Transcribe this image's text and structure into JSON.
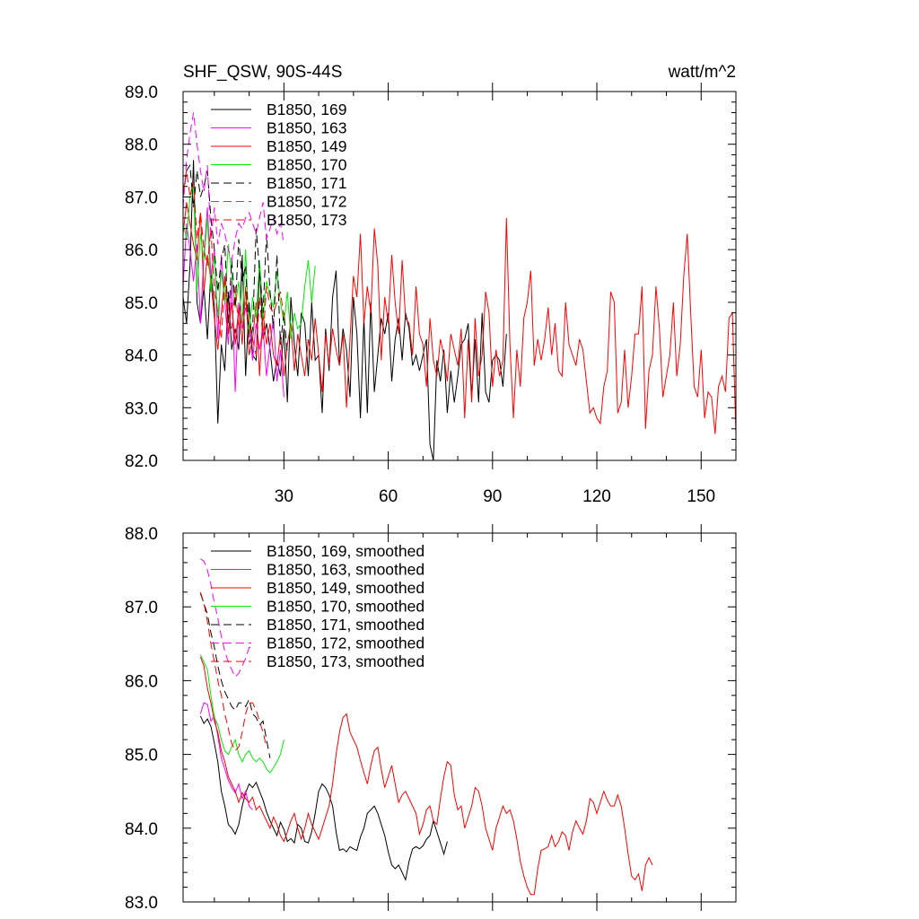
{
  "chart_data": [
    {
      "type": "line",
      "title": "SHF_QSW, 90S-44S",
      "units": "watt/m^2",
      "xlim": [
        1,
        160
      ],
      "ylim": [
        82.0,
        89.0
      ],
      "x_ticks": [
        "30",
        "60",
        "90",
        "120",
        "150"
      ],
      "x_tick_values": [
        30,
        60,
        90,
        120,
        150
      ],
      "y_ticks": [
        "82.0",
        "83.0",
        "84.0",
        "85.0",
        "86.0",
        "87.0",
        "88.0",
        "89.0"
      ],
      "y_tick_values": [
        82,
        83,
        84,
        85,
        86,
        87,
        88,
        89
      ],
      "legend_position": "top-left",
      "series": [
        {
          "name": "B1850, 169",
          "color": "#000000",
          "dash": "solid",
          "x_start": 1,
          "values": [
            85.1,
            84.6,
            85.7,
            87.7,
            85.0,
            84.6,
            85.3,
            84.3,
            85.6,
            84.9,
            82.7,
            84.2,
            83.7,
            85.2,
            84.1,
            84.5,
            84.1,
            85.9,
            83.6,
            85.0,
            84.0,
            83.9,
            85.7,
            84.3,
            84.6,
            84.1,
            83.5,
            83.9,
            83.6,
            84.5,
            83.1,
            85.1,
            84.2,
            83.6,
            84.8,
            84.6,
            83.6,
            85.0,
            83.9,
            84.0,
            82.9,
            84.5,
            83.7,
            85.1,
            85.6,
            83.8,
            84.5,
            84.1,
            83.2,
            85.1,
            84.4,
            82.8,
            84.7,
            82.9,
            85.0,
            83.3,
            84.0,
            84.7,
            84.4,
            84.8,
            83.5,
            84.3,
            84.7,
            83.9,
            84.8,
            84.5,
            83.8,
            84.0,
            83.7,
            84.0,
            84.3,
            82.3,
            82.0,
            83.9,
            83.5,
            84.1,
            82.9,
            83.7,
            83.1,
            83.6,
            84.2,
            84.3,
            84.6,
            83.2,
            84.3,
            83.1,
            84.8,
            83.3,
            83.1,
            83.9,
            84.0,
            83.9,
            83.4,
            84.4
          ]
        },
        {
          "name": "B1850, 163",
          "color": "#ff00ff",
          "dash": "solid",
          "x_start": 1,
          "values": [
            85.3,
            86.5,
            86.0,
            85.4,
            86.1,
            84.6,
            85.9,
            86.8,
            85.5,
            86.0,
            84.3,
            85.9,
            85.0,
            84.2,
            85.4,
            83.3,
            85.0,
            84.5,
            84.9,
            84.6,
            83.9,
            84.6,
            84.1,
            84.5,
            83.6,
            84.2,
            84.7,
            83.5,
            84.1,
            83.2
          ]
        },
        {
          "name": "B1850, 149",
          "color": "#ff0000",
          "dash": "solid",
          "x_start": 1,
          "values": [
            86.3,
            86.9,
            86.5,
            86.1,
            85.8,
            86.7,
            85.2,
            85.9,
            85.4,
            84.7,
            84.1,
            84.8,
            85.5,
            84.4,
            85.0,
            84.2,
            84.9,
            84.2,
            85.3,
            84.0,
            84.3,
            85.0,
            83.6,
            84.8,
            84.2,
            84.6,
            84.0,
            83.8,
            84.4,
            83.6,
            84.2,
            84.6,
            83.7,
            84.4,
            84.0,
            83.6,
            84.3,
            83.9,
            84.7,
            84.0,
            83.3,
            84.4,
            83.8,
            84.5,
            84.1,
            83.8,
            84.4,
            83.0,
            84.3,
            85.5,
            85.1,
            86.3,
            84.6,
            85.3,
            84.8,
            86.4,
            85.7,
            83.9,
            85.1,
            84.6,
            85.9,
            85.0,
            84.4,
            85.8,
            84.7,
            84.6,
            84.0,
            85.3,
            84.4,
            84.2,
            83.4,
            84.7,
            83.9,
            83.6,
            84.3,
            84.0,
            83.5,
            84.4,
            84.1,
            83.8,
            84.5,
            82.8,
            84.3,
            83.1,
            84.7,
            83.6,
            84.0,
            85.2,
            84.8,
            83.4,
            84.1,
            83.6,
            83.9,
            86.6,
            84.2,
            82.8,
            84.1,
            83.4,
            84.7,
            85.0,
            85.6,
            83.8,
            84.3,
            83.9,
            84.3,
            84.9,
            84.0,
            84.6,
            83.7,
            83.6,
            85.0,
            84.2,
            84.0,
            83.8,
            84.3,
            84.1,
            83.5,
            82.9,
            83.0,
            82.8,
            82.7,
            83.4,
            83.7,
            85.2,
            85.0,
            82.9,
            83.1,
            84.1,
            83.0,
            83.6,
            84.4,
            84.4,
            85.3,
            82.6,
            83.7,
            84.0,
            85.3,
            84.5,
            83.2,
            83.6,
            84.0,
            85.0,
            83.6,
            84.2,
            85.5,
            86.3,
            84.8,
            83.4,
            83.2,
            84.1,
            82.8,
            83.3,
            83.2,
            82.5,
            83.4,
            83.6,
            83.3,
            84.7,
            84.8,
            82.5
          ]
        },
        {
          "name": "B1850, 170",
          "color": "#00ee00",
          "dash": "solid",
          "x_start": 1,
          "values": [
            86.5,
            86.2,
            87.0,
            87.2,
            85.2,
            86.3,
            85.8,
            86.6,
            85.2,
            85.9,
            84.7,
            85.6,
            85.0,
            86.1,
            85.5,
            84.9,
            85.4,
            84.6,
            86.0,
            84.4,
            85.1,
            84.7,
            85.8,
            84.7,
            85.4,
            85.1,
            84.9,
            85.6,
            85.0,
            84.6,
            85.2,
            84.3,
            84.8,
            84.5,
            84.6,
            85.3,
            85.8,
            85.0,
            85.7
          ]
        },
        {
          "name": "B1850, 171",
          "color": "#000000",
          "dash": "dash",
          "x_start": 1,
          "values": [
            87.0,
            87.5,
            87.6,
            86.8,
            87.5,
            87.0,
            87.2,
            87.5,
            86.6,
            86.0,
            85.2,
            85.8,
            86.1,
            84.6,
            85.8,
            84.9,
            86.2,
            85.4,
            85.7,
            84.2,
            84.5,
            86.4,
            85.6,
            84.8,
            86.3,
            85.2,
            84.5,
            85.9,
            84.2,
            84.8,
            84.0
          ]
        },
        {
          "name": "B1850, 172",
          "color": "#ff00ff",
          "dash": "dash",
          "x_start": 1,
          "values": [
            86.8,
            87.7,
            88.2,
            88.6,
            88.0,
            87.5,
            87.1,
            87.6,
            86.2,
            86.8,
            86.1,
            86.5,
            86.3,
            86.0,
            85.8,
            86.2,
            86.5,
            86.4,
            86.6,
            86.7,
            86.5,
            86.3,
            86.6,
            86.9,
            86.2,
            86.4,
            86.6,
            86.3,
            86.5,
            86.1
          ]
        },
        {
          "name": "B1850, 173",
          "color": "#ff0000",
          "dash": "dash",
          "x_start": 1,
          "values": [
            87.1,
            87.5,
            87.0,
            87.3,
            86.2,
            86.7,
            86.0,
            85.7,
            86.4,
            85.2,
            84.8,
            84.3,
            85.5,
            84.8,
            84.5,
            85.3,
            84.5,
            84.7,
            85.0,
            84.6,
            84.3,
            84.0,
            85.1,
            84.3,
            85.3,
            84.9,
            84.8,
            85.0,
            85.2,
            84.7
          ]
        }
      ]
    },
    {
      "type": "line",
      "xlim": [
        1,
        160
      ],
      "ylim": [
        83.0,
        88.0
      ],
      "y_ticks": [
        "83.0",
        "84.0",
        "85.0",
        "86.0",
        "87.0",
        "88.0"
      ],
      "y_tick_values": [
        83,
        84,
        85,
        86,
        87,
        88
      ],
      "legend_position": "top-left",
      "series": [
        {
          "name": "B1850, 169, smoothed",
          "color": "#000000",
          "dash": "solid",
          "x_start": 6,
          "values": [
            85.52,
            85.42,
            85.48,
            85.38,
            85.15,
            84.9,
            84.5,
            84.3,
            84.05,
            84.0,
            83.92,
            84.05,
            84.3,
            84.48,
            84.6,
            84.55,
            84.62,
            84.5,
            84.38,
            84.22,
            84.1,
            84.0,
            83.9,
            84.08,
            83.98,
            83.82,
            83.86,
            83.8,
            84.05,
            84.0,
            83.82,
            83.8,
            83.95,
            84.2,
            84.5,
            84.6,
            84.55,
            84.45,
            84.3,
            83.95,
            83.7,
            83.72,
            83.68,
            83.75,
            83.72,
            83.7,
            83.88,
            84.0,
            84.2,
            84.25,
            84.3,
            84.2,
            84.05,
            83.9,
            83.68,
            83.5,
            83.45,
            83.5,
            83.4,
            83.3,
            83.55,
            83.72,
            83.75,
            83.72,
            83.76,
            83.85,
            83.9,
            84.1,
            83.95,
            83.8,
            83.65,
            83.82
          ]
        },
        {
          "name": "B1850, 163, smoothed",
          "color": "#ff00ff",
          "dash": "solid",
          "x_start": 6,
          "values": [
            85.55,
            85.7,
            85.68,
            85.45,
            85.52,
            85.25,
            84.95,
            84.8,
            84.65,
            84.55,
            84.48,
            84.6,
            84.4,
            84.5,
            84.3,
            84.25
          ]
        },
        {
          "name": "B1850, 149, smoothed",
          "color": "#ff0000",
          "dash": "solid",
          "x_start": 6,
          "values": [
            86.32,
            86.2,
            85.9,
            85.7,
            85.45,
            85.3,
            85.05,
            84.9,
            84.7,
            84.6,
            84.5,
            84.35,
            84.48,
            84.4,
            84.35,
            84.42,
            84.25,
            84.3,
            84.2,
            84.1,
            84.0,
            84.15,
            84.05,
            83.9,
            83.82,
            83.95,
            84.1,
            84.2,
            84.0,
            83.85,
            84.0,
            84.2,
            84.05,
            83.95,
            83.85,
            84.0,
            84.15,
            84.3,
            84.6,
            85.0,
            85.3,
            85.5,
            85.55,
            85.3,
            85.2,
            85.1,
            84.92,
            84.75,
            84.6,
            84.85,
            85.05,
            85.1,
            84.8,
            84.55,
            84.7,
            84.85,
            84.6,
            84.35,
            84.45,
            84.5,
            84.4,
            84.3,
            84.2,
            83.92,
            84.05,
            84.25,
            84.3,
            84.1,
            84.05,
            84.4,
            84.7,
            84.9,
            84.85,
            84.45,
            84.25,
            84.3,
            84.0,
            84.15,
            84.3,
            84.55,
            84.5,
            84.3,
            84.0,
            83.85,
            83.7,
            84.0,
            84.15,
            84.3,
            84.2,
            84.25,
            84.1,
            83.85,
            83.55,
            83.35,
            83.2,
            83.1,
            83.1,
            83.45,
            83.7,
            83.72,
            83.75,
            83.9,
            83.75,
            83.82,
            83.95,
            83.9,
            83.7,
            83.95,
            84.1,
            84.0,
            83.92,
            84.1,
            84.4,
            84.35,
            84.2,
            84.35,
            84.5,
            84.38,
            84.3,
            84.3,
            84.45,
            84.3,
            84.0,
            83.65,
            83.35,
            83.3,
            83.38,
            83.15,
            83.5,
            83.6,
            83.5
          ]
        },
        {
          "name": "B1850, 170, smoothed",
          "color": "#00ee00",
          "dash": "solid",
          "x_start": 6,
          "values": [
            86.35,
            86.25,
            86.15,
            85.8,
            85.5,
            85.4,
            85.2,
            85.05,
            85.0,
            85.1,
            85.2,
            85.0,
            84.9,
            85.0,
            85.05,
            84.95,
            84.9,
            84.95,
            84.9,
            84.8,
            84.75,
            84.82,
            84.9,
            85.0,
            85.2
          ]
        },
        {
          "name": "B1850, 171, smoothed",
          "color": "#000000",
          "dash": "dash",
          "x_start": 6,
          "values": [
            87.18,
            87.05,
            86.9,
            86.65,
            86.45,
            86.2,
            86.0,
            85.85,
            85.75,
            85.65,
            85.6,
            85.7,
            85.7,
            85.65,
            85.75,
            85.55,
            85.5,
            85.4,
            85.45,
            85.2,
            84.95
          ]
        },
        {
          "name": "B1850, 172, smoothed",
          "color": "#ff00ff",
          "dash": "dash",
          "x_start": 6,
          "values": [
            87.65,
            87.62,
            87.5,
            87.3,
            87.05,
            86.85,
            86.6,
            86.4,
            86.25,
            86.15,
            86.05,
            86.1,
            86.2,
            86.3,
            86.45,
            86.45
          ]
        },
        {
          "name": "B1850, 173, smoothed",
          "color": "#ff0000",
          "dash": "dash",
          "x_start": 6,
          "values": [
            87.2,
            87.05,
            86.8,
            86.5,
            86.25,
            86.0,
            85.8,
            85.55,
            85.35,
            85.15,
            85.05,
            85.1,
            85.3,
            85.55,
            85.7,
            85.7,
            85.6,
            85.45,
            85.3,
            85.1
          ]
        }
      ]
    }
  ]
}
